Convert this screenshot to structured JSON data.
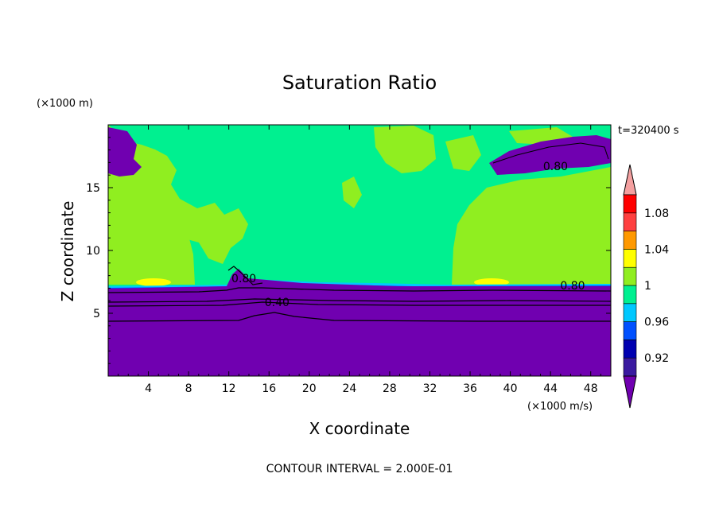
{
  "chart_data": {
    "type": "heatmap",
    "title": "Saturation Ratio",
    "xlabel": "X coordinate",
    "ylabel": "Z coordinate",
    "x_unit": "(×1000 m/s)",
    "y_unit": "(×1000 m)",
    "time_label": "t=320400 s",
    "footer": "CONTOUR INTERVAL = 2.000E-01",
    "xlim": [
      0,
      50
    ],
    "ylim": [
      0,
      20
    ],
    "x_ticks": [
      4,
      8,
      12,
      16,
      20,
      24,
      28,
      32,
      36,
      40,
      44,
      48
    ],
    "y_ticks": [
      5,
      10,
      15
    ],
    "colorbar": {
      "levels": [
        {
          "upper": 0.92,
          "color": "#3a1aa0"
        },
        {
          "upper": 0.94,
          "color": "#0000b0"
        },
        {
          "upper": 0.96,
          "color": "#0050ff"
        },
        {
          "upper": 0.98,
          "color": "#00c8ff"
        },
        {
          "upper": 1.0,
          "color": "#00f090"
        },
        {
          "upper": 1.02,
          "color": "#90ee20"
        },
        {
          "upper": 1.04,
          "color": "#ffff00"
        },
        {
          "upper": 1.06,
          "color": "#ff9900"
        },
        {
          "upper": 1.08,
          "color": "#ff4040"
        },
        {
          "upper": 1.1,
          "color": "#ff0000"
        }
      ],
      "over_color": "#f4a0a0",
      "under_color": "#7000b0",
      "tick_labels": [
        "0.92",
        "0.96",
        "1",
        "1.04",
        "1.08"
      ]
    },
    "region_colors": {
      "dry": "#7000b0",
      "near_saturation": "#00f090",
      "supersaturated": "#90ee20",
      "peak": "#ffff00"
    },
    "contour_labels": [
      {
        "text": "0.40",
        "x": 16.8,
        "z": 5.9
      },
      {
        "text": "0.80",
        "x": 13.5,
        "z": 7.8
      },
      {
        "text": "0.80",
        "x": 46.2,
        "z": 7.2
      },
      {
        "text": "0.80",
        "x": 44.5,
        "z": 16.7
      }
    ],
    "contour_lines_z": [
      7.0,
      6.3,
      5.6,
      4.4
    ]
  }
}
